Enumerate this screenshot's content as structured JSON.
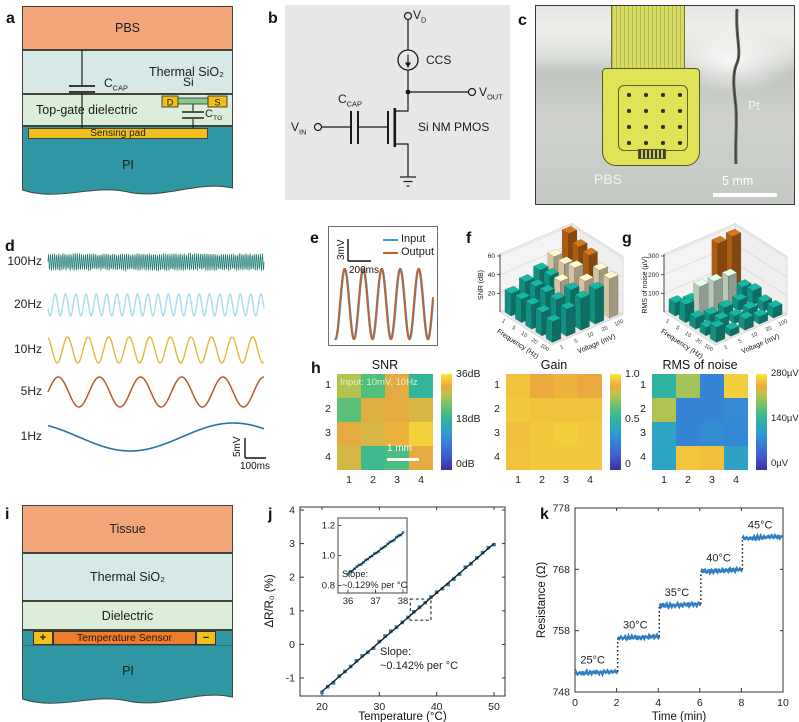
{
  "panel_labels": {
    "a": "a",
    "b": "b",
    "c": "c",
    "d": "d",
    "e": "e",
    "f": "f",
    "g": "g",
    "h": "h",
    "i": "i",
    "j": "j",
    "k": "k"
  },
  "colors": {
    "pbs_layer": "#f2a679",
    "sio2_layer": "#d7e9e6",
    "dielectric_layer": "#dcedd9",
    "gold": "#f2c01d",
    "pi_layer": "#2f97a4",
    "sensor_orange": "#ed7d2b",
    "si_green": "#8cc88a",
    "circuit_bg": "#e7e7e7",
    "heat_annotation": "#d8f4cf"
  },
  "panel_a": {
    "layers": {
      "pbs": "PBS",
      "thermal": "Thermal SiO₂",
      "dielectric": "Top-gate dielectric",
      "pad": "Sensing pad",
      "pi": "PI"
    },
    "ccap_base": "C",
    "ccap_sub": "CAP",
    "si": "Si",
    "d": "D",
    "s": "S",
    "ctg_base": "C",
    "ctg_sub": "TG"
  },
  "panel_b": {
    "vd_base": "V",
    "vd_sub": "D",
    "ccs": "CCS",
    "vout_base": "V",
    "vout_sub": "OUT",
    "ccap_base": "C",
    "ccap_sub": "CAP",
    "vin_base": "V",
    "vin_sub": "IN",
    "mosfet": "Si NM PMOS"
  },
  "panel_c": {
    "liquid_label": "PBS",
    "wire_label": "Pt",
    "scalebar_label": "5 mm"
  },
  "panel_i": {
    "layers": {
      "tissue": "Tissue",
      "thermal": "Thermal SiO₂",
      "dielectric": "Dielectric",
      "sensor": "Temperature Sensor",
      "plus": "+",
      "minus": "−",
      "pi": "PI"
    }
  },
  "chart_data": {
    "d": {
      "type": "line",
      "window_s": 1.05,
      "scale_v": "5mV",
      "scale_t": "100ms",
      "traces": [
        {
          "label": "100Hz",
          "freq_hz": 100,
          "color": "#17776f"
        },
        {
          "label": "20Hz",
          "freq_hz": 20,
          "color": "#a9dcee"
        },
        {
          "label": "10Hz",
          "freq_hz": 10,
          "color": "#e2bb33"
        },
        {
          "label": "5Hz",
          "freq_hz": 5,
          "color": "#c05729"
        },
        {
          "label": "1Hz",
          "freq_hz": 1,
          "color": "#2273ab"
        }
      ]
    },
    "e": {
      "type": "line",
      "freq_hz": 5,
      "window_s": 1.05,
      "scale_v": "3mV",
      "scale_t": "200ms",
      "legend": [
        {
          "label": "Input",
          "color": "#3f9dc9"
        },
        {
          "label": "Output",
          "color": "#cb5f2b"
        }
      ]
    },
    "f": {
      "type": "bar3d",
      "zlabel": "SNR (dB)",
      "zlim": [
        0,
        60
      ],
      "zticks": [
        20,
        40,
        60
      ],
      "xlabel": "Frequency (Hz)",
      "xticks": [
        "1",
        "5",
        "10",
        "20",
        "100"
      ],
      "ylabel": "Voltage (mV)",
      "yticks": [
        "1",
        "5",
        "10",
        "20",
        "100"
      ],
      "thresholds": [
        38,
        50
      ],
      "bar_colors": {
        "low": "#13a393",
        "mid": "#efe0b9",
        "high": "#c26a14"
      },
      "values": [
        [
          24,
          30,
          36,
          44,
          62
        ],
        [
          25,
          32,
          37,
          43,
          55
        ],
        [
          26,
          33,
          38,
          46,
          53
        ],
        [
          25,
          32,
          36,
          39,
          44
        ],
        [
          22,
          29,
          34,
          37,
          42
        ]
      ]
    },
    "g": {
      "type": "bar3d",
      "zlabel": "RMS of noise (µV)",
      "zlim": [
        0,
        300
      ],
      "zticks": [
        100,
        200,
        300
      ],
      "xlabel": "Frequency (Hz)",
      "xticks": [
        "1",
        "5",
        "10",
        "20",
        "100"
      ],
      "ylabel": "Voltage (mV)",
      "yticks": [
        "1",
        "5",
        "10",
        "20",
        "100"
      ],
      "thresholds": [
        120,
        230
      ],
      "bar_colors": {
        "low": "#13a393",
        "mid": "#cfe6d2",
        "high": "#c26a14"
      },
      "values": [
        [
          70,
          50,
          45,
          290,
          295
        ],
        [
          95,
          160,
          155,
          150,
          60
        ],
        [
          60,
          45,
          50,
          55,
          75
        ],
        [
          45,
          55,
          40,
          45,
          50
        ],
        [
          80,
          35,
          60,
          40,
          55
        ]
      ]
    },
    "h": [
      {
        "type": "heatmap",
        "title": "SNR",
        "vmin": 0,
        "vmax": 36,
        "rows": [
          "1",
          "2",
          "3",
          "4"
        ],
        "cols": [
          "1",
          "2",
          "3",
          "4"
        ],
        "values": [
          [
            28,
            22.5,
            31,
            19
          ],
          [
            23,
            30.5,
            31,
            30
          ],
          [
            31,
            30,
            32,
            34.5
          ],
          [
            30,
            20.5,
            22,
            31
          ]
        ],
        "colorbar_ticks": [
          "36dB",
          "18dB",
          "0dB"
        ],
        "annotation": "Input: 10mV, 10Hz",
        "scalebar": "1 mm"
      },
      {
        "type": "heatmap",
        "title": "Gain",
        "vmin": 0,
        "vmax": 1,
        "rows": [
          "1",
          "2",
          "3",
          "4"
        ],
        "cols": [
          "1",
          "2",
          "3",
          "4"
        ],
        "values": [
          [
            0.93,
            0.87,
            0.89,
            0.87
          ],
          [
            0.94,
            0.93,
            0.93,
            0.93
          ],
          [
            0.92,
            0.94,
            0.95,
            0.94
          ],
          [
            0.93,
            0.94,
            0.94,
            0.94
          ]
        ],
        "colorbar_ticks": [
          "1.0",
          "0.5",
          "0"
        ]
      },
      {
        "type": "heatmap",
        "title": "RMS of noise",
        "vmin": 0,
        "vmax": 280,
        "rows": [
          "1",
          "2",
          "3",
          "4"
        ],
        "cols": [
          "1",
          "2",
          "3",
          "4"
        ],
        "values": [
          [
            146,
            210,
            84,
            266
          ],
          [
            216,
            84,
            84,
            90
          ],
          [
            118,
            84,
            92,
            87
          ],
          [
            120,
            262,
            258,
            115
          ]
        ],
        "colorbar_ticks": [
          "280µV",
          "140µV",
          "0µV"
        ]
      }
    ],
    "j": {
      "type": "scatter",
      "xlabel": "Temperature (°C)",
      "ylabel": "ΔR/R₀ (%)",
      "xticks": [
        20,
        30,
        40,
        50
      ],
      "yticks": [
        -1,
        0,
        1,
        2,
        3,
        4
      ],
      "fit": {
        "x0": 20,
        "y0": -1.4,
        "x1": 50,
        "y1": 3.0
      },
      "slope_text": [
        "Slope:",
        "~0.142% per °C"
      ],
      "marker_color": "#2d7fae",
      "zoom_box": {
        "x": [
          35.4,
          39
        ],
        "y": [
          0.72,
          1.35
        ]
      },
      "inset": {
        "xticks": [
          36,
          37,
          38
        ],
        "yticks": [
          0.8,
          1.0,
          1.2
        ],
        "fit": {
          "x0": 36,
          "y0": 0.88,
          "x1": 38,
          "y1": 1.15
        },
        "slope_text": [
          "Slope:",
          "~0.129% per °C"
        ]
      }
    },
    "k": {
      "type": "step",
      "xlabel": "Time (min)",
      "ylabel": "Resistance (Ω)",
      "xticks": [
        0,
        2,
        4,
        6,
        8,
        10
      ],
      "yticks": [
        748,
        758,
        768,
        778
      ],
      "xlim": [
        0,
        10
      ],
      "ylim": [
        748,
        778
      ],
      "line_color": "#2e7fc1",
      "steps": [
        {
          "label": "25°C",
          "t0": 0,
          "t1": 2.05,
          "r": 751.2
        },
        {
          "label": "30°C",
          "t0": 2.05,
          "t1": 4.05,
          "r": 756.9
        },
        {
          "label": "35°C",
          "t0": 4.05,
          "t1": 6.05,
          "r": 762.2
        },
        {
          "label": "40°C",
          "t0": 6.05,
          "t1": 8.05,
          "r": 767.8
        },
        {
          "label": "45°C",
          "t0": 8.05,
          "t1": 10,
          "r": 773.2
        }
      ]
    }
  }
}
